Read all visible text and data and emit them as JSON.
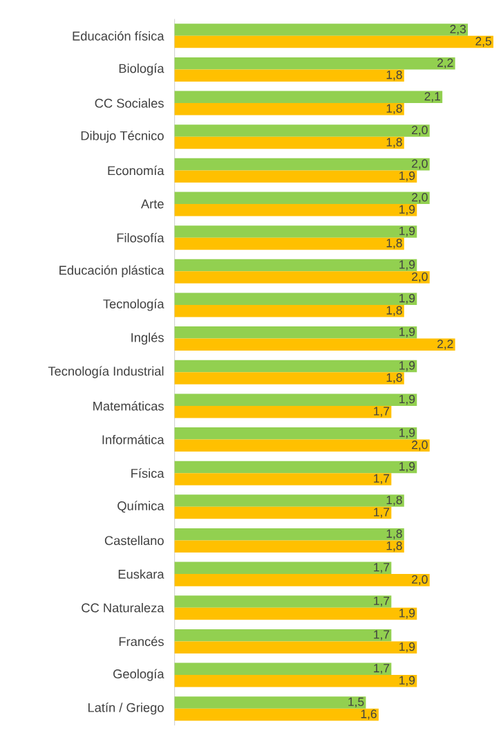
{
  "chart_data": {
    "type": "bar",
    "orientation": "horizontal",
    "categories": [
      "Educación física",
      "Biología",
      "CC Sociales",
      "Dibujo Técnico",
      "Economía",
      "Arte",
      "Filosofía",
      "Educación plástica",
      "Tecnología",
      "Inglés",
      "Tecnología Industrial",
      "Matemáticas",
      "Informática",
      "Física",
      "Química",
      "Castellano",
      "Euskara",
      "CC Naturaleza",
      "Francés",
      "Geología",
      "Latín / Griego"
    ],
    "series": [
      {
        "color": "#92d050",
        "values": [
          2.3,
          2.2,
          2.1,
          2.0,
          2.0,
          2.0,
          1.9,
          1.9,
          1.9,
          1.9,
          1.9,
          1.9,
          1.9,
          1.9,
          1.8,
          1.8,
          1.7,
          1.7,
          1.7,
          1.7,
          1.5
        ],
        "value_labels": [
          "2,3",
          "2,2",
          "2,1",
          "2,0",
          "2,0",
          "2,0",
          "1,9",
          "1,9",
          "1,9",
          "1,9",
          "1,9",
          "1,9",
          "1,9",
          "1,9",
          "1,8",
          "1,8",
          "1,7",
          "1,7",
          "1,7",
          "1,7",
          "1,5"
        ]
      },
      {
        "color": "#ffc000",
        "values": [
          2.5,
          1.8,
          1.8,
          1.8,
          1.9,
          1.9,
          1.8,
          2.0,
          1.8,
          2.2,
          1.8,
          1.7,
          2.0,
          1.7,
          1.7,
          1.8,
          2.0,
          1.9,
          1.9,
          1.9,
          1.6
        ],
        "value_labels": [
          "2,5",
          "1,8",
          "1,8",
          "1,8",
          "1,9",
          "1,9",
          "1,8",
          "2,0",
          "1,8",
          "2,2",
          "1,8",
          "1,7",
          "2,0",
          "1,7",
          "1,7",
          "1,8",
          "2,0",
          "1,9",
          "1,9",
          "1,9",
          "1,6"
        ]
      }
    ]
  }
}
